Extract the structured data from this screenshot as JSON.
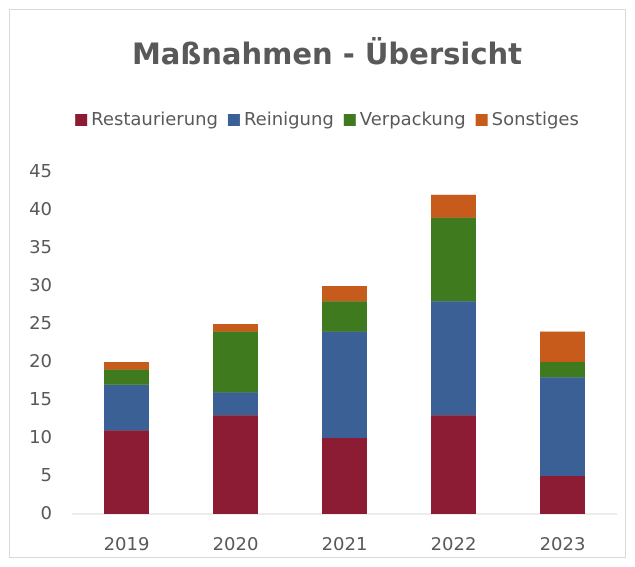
{
  "chart_data": {
    "type": "stacked_bar",
    "title": "Maßnahmen - Übersicht",
    "categories": [
      "2019",
      "2020",
      "2021",
      "2022",
      "2023"
    ],
    "series": [
      {
        "name": "Restaurierung",
        "color": "#8b1c34",
        "values": [
          11,
          13,
          10,
          13,
          5
        ]
      },
      {
        "name": "Reinigung",
        "color": "#3a6096",
        "values": [
          6,
          3,
          14,
          15,
          13
        ]
      },
      {
        "name": "Verpackung",
        "color": "#3f7a1f",
        "values": [
          2,
          8,
          4,
          11,
          2
        ]
      },
      {
        "name": "Sonstiges",
        "color": "#c65b1b",
        "values": [
          1,
          1,
          2,
          3,
          4
        ]
      }
    ],
    "ylim": [
      0,
      45
    ],
    "yticks": [
      0,
      5,
      10,
      15,
      20,
      25,
      30,
      35,
      40,
      45
    ],
    "grid": false,
    "legend": "top"
  }
}
